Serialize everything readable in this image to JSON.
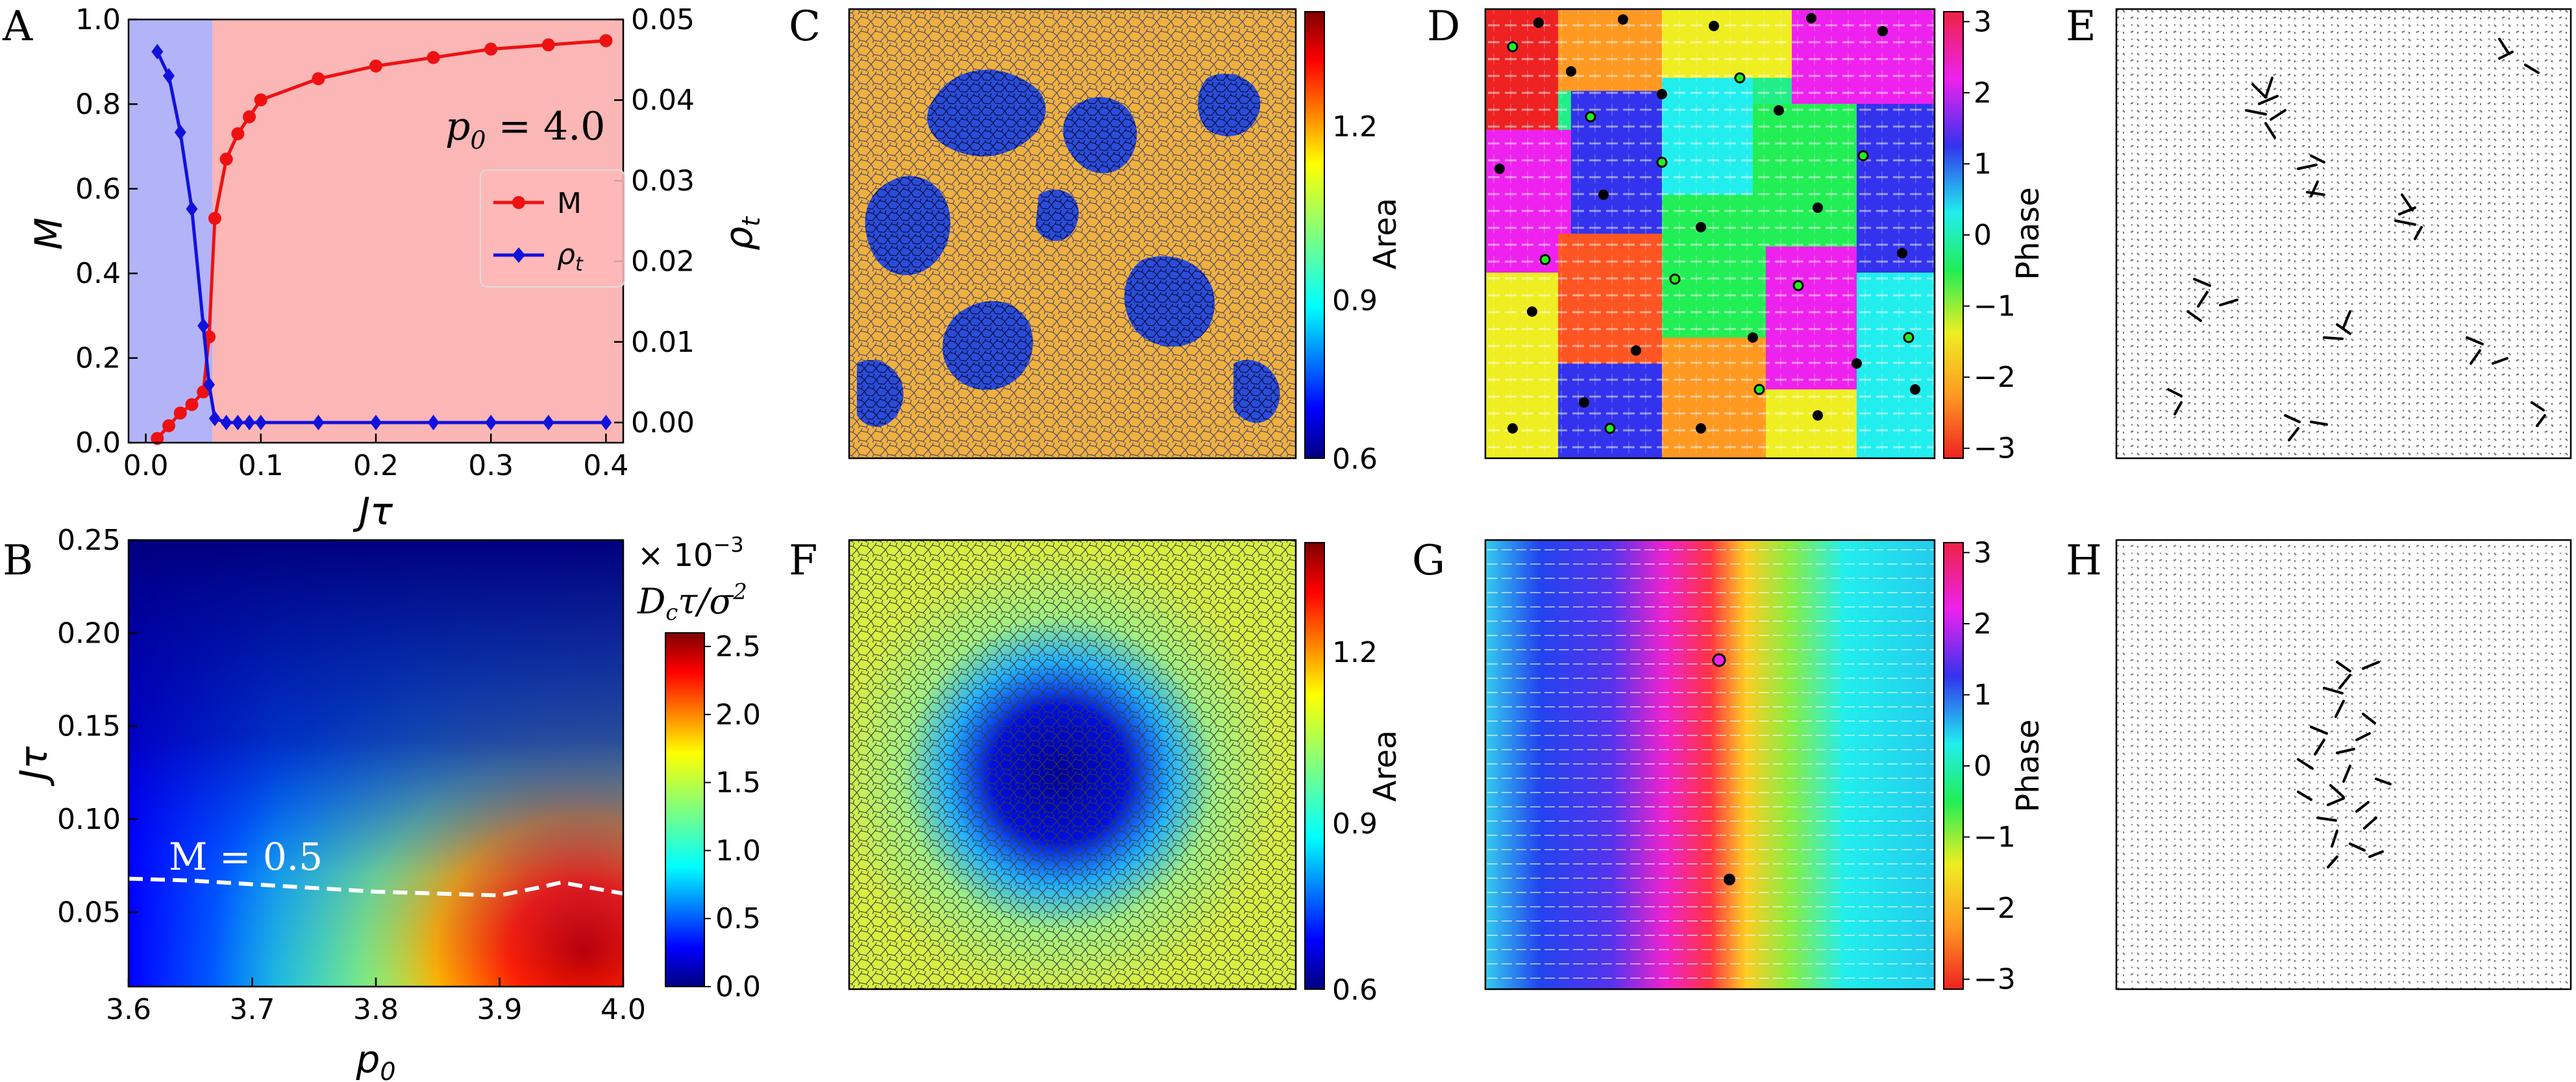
{
  "panels": {
    "A": "A",
    "B": "B",
    "C": "C",
    "D": "D",
    "E": "E",
    "F": "F",
    "G": "G",
    "H": "H"
  },
  "chart_data": [
    {
      "id": "A",
      "type": "line",
      "x": [
        0.01,
        0.02,
        0.03,
        0.04,
        0.05,
        0.055,
        0.06,
        0.07,
        0.08,
        0.09,
        0.1,
        0.15,
        0.2,
        0.25,
        0.3,
        0.35,
        0.4
      ],
      "xlabel": "Jτ",
      "xlim": [
        -0.015,
        0.415
      ],
      "xticks": [
        "0.0",
        "0.1",
        "0.2",
        "0.3",
        "0.4"
      ],
      "ylabel": "M",
      "ylim": [
        0,
        1.0
      ],
      "yticks": [
        "0.0",
        "0.2",
        "0.4",
        "0.6",
        "0.8",
        "1.0"
      ],
      "y2label": "ρ",
      "y2label_sub": "t",
      "y2lim": [
        -0.0025,
        0.05
      ],
      "y2ticks": [
        "0.00",
        "0.01",
        "0.02",
        "0.03",
        "0.04",
        "0.05"
      ],
      "series": [
        {
          "name": "M",
          "axis": "left",
          "color": "#ee1111",
          "values": [
            0.01,
            0.04,
            0.07,
            0.09,
            0.12,
            0.25,
            0.53,
            0.67,
            0.73,
            0.77,
            0.81,
            0.86,
            0.89,
            0.91,
            0.93,
            0.94,
            0.95
          ]
        },
        {
          "name": "ρ",
          "name_sub": "t",
          "axis": "right",
          "color": "#1111dd",
          "values": [
            0.046,
            0.043,
            0.036,
            0.0265,
            0.012,
            0.0047,
            0.0005,
            0.0,
            0.0,
            0.0,
            0.0,
            0.0,
            0.0,
            0.0,
            0.0,
            0.0,
            0.0
          ]
        }
      ],
      "shading": [
        {
          "from": -0.015,
          "to": 0.058,
          "color": "#b3b3f8"
        },
        {
          "from": 0.058,
          "to": 0.415,
          "color": "#fbb6b6"
        }
      ],
      "annotation_lhs": "p",
      "annotation_sub": "0",
      "annotation_rhs": " = 4.0",
      "legend": "right-middle"
    },
    {
      "id": "B",
      "type": "heatmap",
      "xlabel": "p",
      "xlabel_sub": "0",
      "xlim": [
        3.6,
        4.0
      ],
      "xticks": [
        "3.6",
        "3.7",
        "3.8",
        "3.9",
        "4.0"
      ],
      "ylabel": "Jτ",
      "ylim": [
        0.01,
        0.25
      ],
      "yticks": [
        "0.05",
        "0.10",
        "0.15",
        "0.20",
        "0.25"
      ],
      "colorbar_title_prefix": "× 10",
      "colorbar_title_exp": "−3",
      "colorbar_label": "D",
      "colorbar_label_sub": "c",
      "colorbar_label_rest": "τ/σ",
      "colorbar_label_sup": "2",
      "colorbar_lim": [
        0.0,
        2.6
      ],
      "colorbar_ticks": [
        "0.0",
        "0.5",
        "1.0",
        "1.5",
        "2.0",
        "2.5"
      ],
      "contour_label": "M = 0.5",
      "contour_x": [
        3.6,
        3.65,
        3.7,
        3.75,
        3.8,
        3.85,
        3.9,
        3.93,
        3.95,
        4.0
      ],
      "contour_y": [
        0.068,
        0.067,
        0.065,
        0.063,
        0.061,
        0.06,
        0.059,
        0.063,
        0.066,
        0.06
      ]
    },
    {
      "id": "C",
      "type": "heatmap",
      "description_kind": "cell-area map",
      "colorbar_label": "Area",
      "colorbar_lim": [
        0.6,
        1.45
      ],
      "colorbar_ticks": [
        "0.6",
        "0.9",
        "1.2"
      ]
    },
    {
      "id": "D",
      "type": "heatmap",
      "description_kind": "phase map",
      "colorbar_label": "Phase",
      "colorbar_lim": [
        -3.14,
        3.14
      ],
      "colorbar_ticks": [
        "−3",
        "−2",
        "−1",
        "0",
        "1",
        "2",
        "3"
      ]
    },
    {
      "id": "F",
      "type": "heatmap",
      "description_kind": "cell-area map",
      "colorbar_label": "Area",
      "colorbar_lim": [
        0.6,
        1.45
      ],
      "colorbar_ticks": [
        "0.6",
        "0.9",
        "1.2"
      ]
    },
    {
      "id": "G",
      "type": "heatmap",
      "description_kind": "phase map",
      "colorbar_label": "Phase",
      "colorbar_lim": [
        -3.14,
        3.14
      ],
      "colorbar_ticks": [
        "−3",
        "−2",
        "−1",
        "0",
        "1",
        "2",
        "3"
      ]
    }
  ],
  "colors": {
    "jet": [
      "#00007f",
      "#0000ff",
      "#007fff",
      "#00ffff",
      "#7fff7f",
      "#ffff00",
      "#ff7f00",
      "#ff0000",
      "#7f0000"
    ],
    "phase": [
      "#ee2222",
      "#ff9922",
      "#eeee22",
      "#22ee55",
      "#22eeee",
      "#3333ee",
      "#ee22ee",
      "#ee2244"
    ]
  }
}
